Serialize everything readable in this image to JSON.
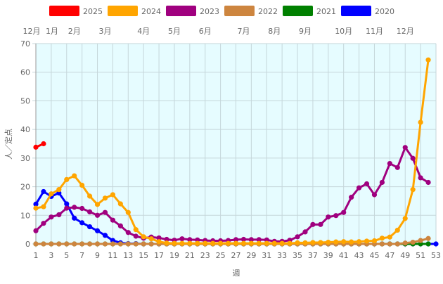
{
  "chart_data": {
    "type": "line",
    "title": "",
    "xlabel": "週",
    "ylabel": "人／定点",
    "xlim": [
      1,
      53
    ],
    "ylim": [
      0,
      70
    ],
    "grid": true,
    "legend_position": "top",
    "plot_background": "#e6fcff",
    "x_ticks": [
      1,
      3,
      5,
      7,
      9,
      11,
      13,
      15,
      17,
      19,
      21,
      23,
      25,
      27,
      29,
      31,
      33,
      35,
      37,
      39,
      41,
      43,
      45,
      47,
      49,
      51,
      53
    ],
    "y_ticks": [
      0,
      10,
      20,
      30,
      40,
      50,
      60,
      70
    ],
    "month_labels": [
      {
        "label": "12月",
        "week": 1.5
      },
      {
        "label": "1月",
        "week": 2
      },
      {
        "label": "2月",
        "week": 6
      },
      {
        "label": "3月",
        "week": 10
      },
      {
        "label": "4月",
        "week": 15
      },
      {
        "label": "5月",
        "week": 19
      },
      {
        "label": "6月",
        "week": 23
      },
      {
        "label": "7月",
        "week": 28
      },
      {
        "label": "8月",
        "week": 32
      },
      {
        "label": "9月",
        "week": 36
      },
      {
        "label": "10月",
        "week": 41
      },
      {
        "label": "11月",
        "week": 45
      },
      {
        "label": "12月",
        "week": 49
      }
    ],
    "series": [
      {
        "name": "2025",
        "color": "#ff0000",
        "values": [
          33.8,
          35.0
        ]
      },
      {
        "name": "2024",
        "color": "#ffa500",
        "values": [
          12.5,
          13,
          17.5,
          19,
          22.5,
          23.8,
          20.5,
          16.7,
          13.8,
          16,
          17.2,
          14,
          11,
          5,
          2.5,
          1.8,
          0.8,
          0.3,
          0.2,
          0.2,
          0.2,
          0.2,
          0.2,
          0.2,
          0.2,
          0.2,
          0.2,
          0.2,
          0.2,
          0.2,
          0.2,
          0.2,
          0.2,
          0.2,
          0.4,
          0.4,
          0.5,
          0.5,
          0.6,
          0.7,
          0.8,
          0.7,
          0.8,
          1.0,
          1.1,
          2.0,
          2.4,
          4.8,
          8.9,
          19,
          42.5,
          64.3
        ]
      },
      {
        "name": "2023",
        "color": "#a0007f",
        "values": [
          4.6,
          7.2,
          9.4,
          10.2,
          12.5,
          12.8,
          12.4,
          11.2,
          10.0,
          11.0,
          8.3,
          6.3,
          4.0,
          2.7,
          2.0,
          2.4,
          2.1,
          1.6,
          1.3,
          1.8,
          1.5,
          1.4,
          1.2,
          1.1,
          1.1,
          1.2,
          1.5,
          1.6,
          1.5,
          1.5,
          1.4,
          0.9,
          0.9,
          1.3,
          2.5,
          4.2,
          6.8,
          6.8,
          9.4,
          9.9,
          11,
          16.3,
          19.6,
          21,
          17.2,
          21.5,
          28.1,
          26.7,
          33.7,
          29.9,
          23.1,
          21.5
        ]
      },
      {
        "name": "2022",
        "color": "#cd853f",
        "values": [
          0,
          0,
          0,
          0,
          0,
          0,
          0,
          0,
          0,
          0,
          0,
          0,
          0,
          0,
          0,
          0,
          0,
          0,
          0,
          0,
          0,
          0,
          0,
          0,
          0,
          0,
          0,
          0,
          0,
          0,
          0,
          0,
          0,
          0,
          0,
          0,
          0,
          0,
          0,
          0,
          0,
          0,
          0,
          0,
          0,
          0,
          0,
          0,
          0.3,
          0.6,
          1.2,
          1.9
        ]
      },
      {
        "name": "2021",
        "color": "#008000",
        "values": [
          0,
          0,
          0,
          0,
          0,
          0,
          0,
          0,
          0,
          0,
          0,
          0,
          0,
          0,
          0,
          0,
          0,
          0,
          0,
          0,
          0,
          0,
          0,
          0,
          0,
          0,
          0,
          0,
          0,
          0,
          0,
          0,
          0,
          0,
          0,
          0,
          0,
          0,
          0,
          0,
          0,
          0,
          0,
          0,
          0,
          0,
          0,
          0,
          0,
          0,
          0,
          0
        ]
      },
      {
        "name": "2020",
        "color": "#0000ff",
        "values": [
          13.9,
          18.3,
          16.6,
          17.8,
          14.0,
          9.0,
          7.4,
          6.0,
          4.6,
          3.0,
          1.2,
          0.4,
          0.1,
          0.1,
          0,
          0,
          0,
          0,
          0,
          0,
          0,
          0,
          0,
          0,
          0,
          0,
          0,
          0,
          0,
          0,
          0,
          0,
          0,
          0,
          0,
          0,
          0,
          0,
          0,
          0,
          0,
          0,
          0,
          0,
          0,
          0,
          0,
          0,
          0,
          0,
          0,
          0,
          0
        ]
      }
    ]
  }
}
